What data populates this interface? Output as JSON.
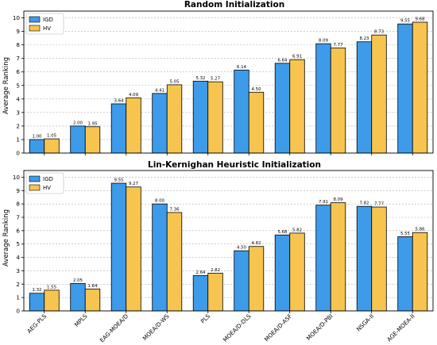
{
  "chart_data": [
    {
      "type": "bar",
      "title": "Random Initialization",
      "ylabel": "Average Ranking",
      "xlabel": "",
      "ylim": [
        0,
        10.5
      ],
      "yticks": [
        0,
        1,
        2,
        3,
        4,
        5,
        6,
        7,
        8,
        9,
        10
      ],
      "grid": true,
      "legend_position": "top-left",
      "categories": [
        "AEG-PLS",
        "MPLS",
        "EAG-MOEA/D",
        "MOEA/D-WS",
        "PLS",
        "MOEA/D-DLS",
        "MOEA/D-ASF",
        "MOEA/D-PBI",
        "NSGA-II",
        "AGE-MOEA-II"
      ],
      "series": [
        {
          "name": "IGD",
          "color": "#3d9be9",
          "values": [
            1.0,
            2.0,
            3.64,
            4.41,
            5.32,
            6.14,
            6.64,
            8.09,
            8.23,
            9.55
          ],
          "labels": [
            "1.00",
            "2.00",
            "3.64",
            "4.41",
            "5.32",
            "6.14",
            "6.64",
            "8.09",
            "8.23",
            "9.55"
          ]
        },
        {
          "name": "HV",
          "color": "#f7c54f",
          "values": [
            1.05,
            1.95,
            4.09,
            5.05,
            5.27,
            4.5,
            6.91,
            7.77,
            8.73,
            9.68
          ],
          "labels": [
            "1.05",
            "1.95",
            "4.09",
            "5.05",
            "5.27",
            "4.50",
            "6.91",
            "7.77",
            "8.73",
            "9.68"
          ]
        }
      ]
    },
    {
      "type": "bar",
      "title": "Lin-Kernighan Heuristic Initialization",
      "ylabel": "Average Ranking",
      "xlabel": "",
      "ylim": [
        0,
        10.5
      ],
      "yticks": [
        0,
        1,
        2,
        3,
        4,
        5,
        6,
        7,
        8,
        9,
        10
      ],
      "grid": true,
      "legend_position": "top-left",
      "categories": [
        "AEG-PLS",
        "MPLS",
        "EAG-MOEA/D",
        "MOEA/D-WS",
        "PLS",
        "MOEA/D-DLS",
        "MOEA/D-ASF",
        "MOEA/D-PBI",
        "NSGA-II",
        "AGE-MOEA-II"
      ],
      "series": [
        {
          "name": "IGD",
          "color": "#3d9be9",
          "values": [
            1.32,
            2.05,
            9.55,
            8.0,
            2.64,
            4.5,
            5.68,
            7.91,
            7.82,
            5.55
          ],
          "labels": [
            "1.32",
            "2.05",
            "9.55",
            "8.00",
            "2.64",
            "4.50",
            "5.68",
            "7.91",
            "7.82",
            "5.55"
          ]
        },
        {
          "name": "HV",
          "color": "#f7c54f",
          "values": [
            1.55,
            1.64,
            9.27,
            7.36,
            2.82,
            4.82,
            5.82,
            8.09,
            7.77,
            5.86
          ],
          "labels": [
            "1.55",
            "1.64",
            "9.27",
            "7.36",
            "2.82",
            "4.82",
            "5.82",
            "8.09",
            "7.77",
            "5.86"
          ]
        }
      ]
    }
  ]
}
